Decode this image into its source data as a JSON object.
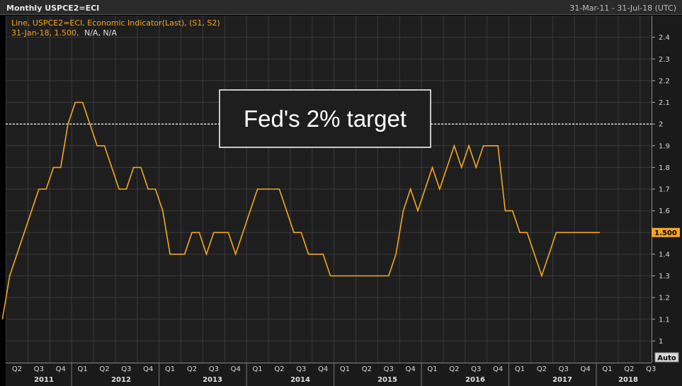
{
  "header": {
    "title": "Monthly USPCE2=ECI",
    "date_range": "31-Mar-11 - 31-Jul-18 (UTC)"
  },
  "legend": {
    "line1": "Line, USPCE2=ECI, Economic Indicator(Last), (S1, S2)",
    "line2_date": "31-Jan-18, 1.500,",
    "line2_rest": "N/A, N/A"
  },
  "annotation": {
    "text": "Fed's 2% target",
    "value": 2.0
  },
  "last_value_label": "1.500",
  "auto_button": "Auto",
  "colors": {
    "background": "#1e1e1e",
    "grid": "#3a3a3a",
    "line": "#f5a623",
    "title_text": "#e0e0e0",
    "legend_text": "#f5a623"
  },
  "chart_data": {
    "type": "line",
    "title": "Monthly USPCE2=ECI",
    "ylim": [
      0.9,
      2.5
    ],
    "yticks": [
      1,
      1.1,
      1.2,
      1.3,
      1.4,
      1.5,
      1.6,
      1.7,
      1.8,
      1.9,
      2,
      2.1,
      2.2,
      2.3,
      2.4
    ],
    "ytick_labels": [
      "1",
      "1.1",
      "1.2",
      "1.3",
      "1.4",
      "1.5",
      "1.6",
      "1.7",
      "1.8",
      "1.9",
      "2",
      "2.1",
      "2.2",
      "2.3",
      "2.4"
    ],
    "quarter_labels": [
      "Q2",
      "Q3",
      "Q4",
      "Q1",
      "Q2",
      "Q3",
      "Q4",
      "Q1",
      "Q2",
      "Q3",
      "Q4",
      "Q1",
      "Q2",
      "Q3",
      "Q4",
      "Q1",
      "Q2",
      "Q3",
      "Q4",
      "Q1",
      "Q2",
      "Q3",
      "Q4",
      "Q1",
      "Q2",
      "Q3",
      "Q4",
      "Q1",
      "Q2",
      "Q3"
    ],
    "year_labels": [
      "2011",
      "2012",
      "2013",
      "2014",
      "2015",
      "2016",
      "2017",
      "2018"
    ],
    "grid": true,
    "series": [
      {
        "x": [
          "2011-03",
          "2011-04",
          "2011-05",
          "2011-06",
          "2011-07",
          "2011-08",
          "2011-09",
          "2011-10",
          "2011-11",
          "2011-12",
          "2012-01",
          "2012-02",
          "2012-03",
          "2012-04",
          "2012-05",
          "2012-06",
          "2012-07",
          "2012-08",
          "2012-09",
          "2012-10",
          "2012-11",
          "2012-12",
          "2013-01",
          "2013-02",
          "2013-03",
          "2013-04",
          "2013-05",
          "2013-06",
          "2013-07",
          "2013-08",
          "2013-09",
          "2013-10",
          "2013-11",
          "2013-12",
          "2014-01",
          "2014-02",
          "2014-03",
          "2014-04",
          "2014-05",
          "2014-06",
          "2014-07",
          "2014-08",
          "2014-09",
          "2014-10",
          "2014-11",
          "2014-12",
          "2015-01",
          "2015-02",
          "2015-03",
          "2015-04",
          "2015-05",
          "2015-06",
          "2015-07",
          "2015-08",
          "2015-09",
          "2015-10",
          "2015-11",
          "2015-12",
          "2016-01",
          "2016-02",
          "2016-03",
          "2016-04",
          "2016-05",
          "2016-06",
          "2016-07",
          "2016-08",
          "2016-09",
          "2016-10",
          "2016-11",
          "2016-12",
          "2017-01",
          "2017-02",
          "2017-03",
          "2017-04",
          "2017-05",
          "2017-06",
          "2017-07",
          "2017-08",
          "2017-09",
          "2017-10",
          "2017-11",
          "2017-12",
          "2018-01"
        ],
        "y": [
          1.1,
          1.3,
          1.4,
          1.5,
          1.6,
          1.7,
          1.7,
          1.8,
          1.8,
          2.0,
          2.1,
          2.1,
          2.0,
          1.9,
          1.9,
          1.8,
          1.7,
          1.7,
          1.8,
          1.8,
          1.7,
          1.7,
          1.6,
          1.4,
          1.4,
          1.4,
          1.5,
          1.5,
          1.4,
          1.5,
          1.5,
          1.5,
          1.4,
          1.5,
          1.6,
          1.7,
          1.7,
          1.7,
          1.7,
          1.6,
          1.5,
          1.5,
          1.4,
          1.4,
          1.4,
          1.3,
          1.3,
          1.3,
          1.3,
          1.3,
          1.3,
          1.3,
          1.3,
          1.3,
          1.4,
          1.6,
          1.7,
          1.6,
          1.7,
          1.8,
          1.7,
          1.8,
          1.9,
          1.8,
          1.9,
          1.8,
          1.9,
          1.9,
          1.9,
          1.6,
          1.6,
          1.5,
          1.5,
          1.4,
          1.3,
          1.4,
          1.5,
          1.5,
          1.5,
          1.5,
          1.5,
          1.5,
          1.5
        ]
      }
    ]
  }
}
